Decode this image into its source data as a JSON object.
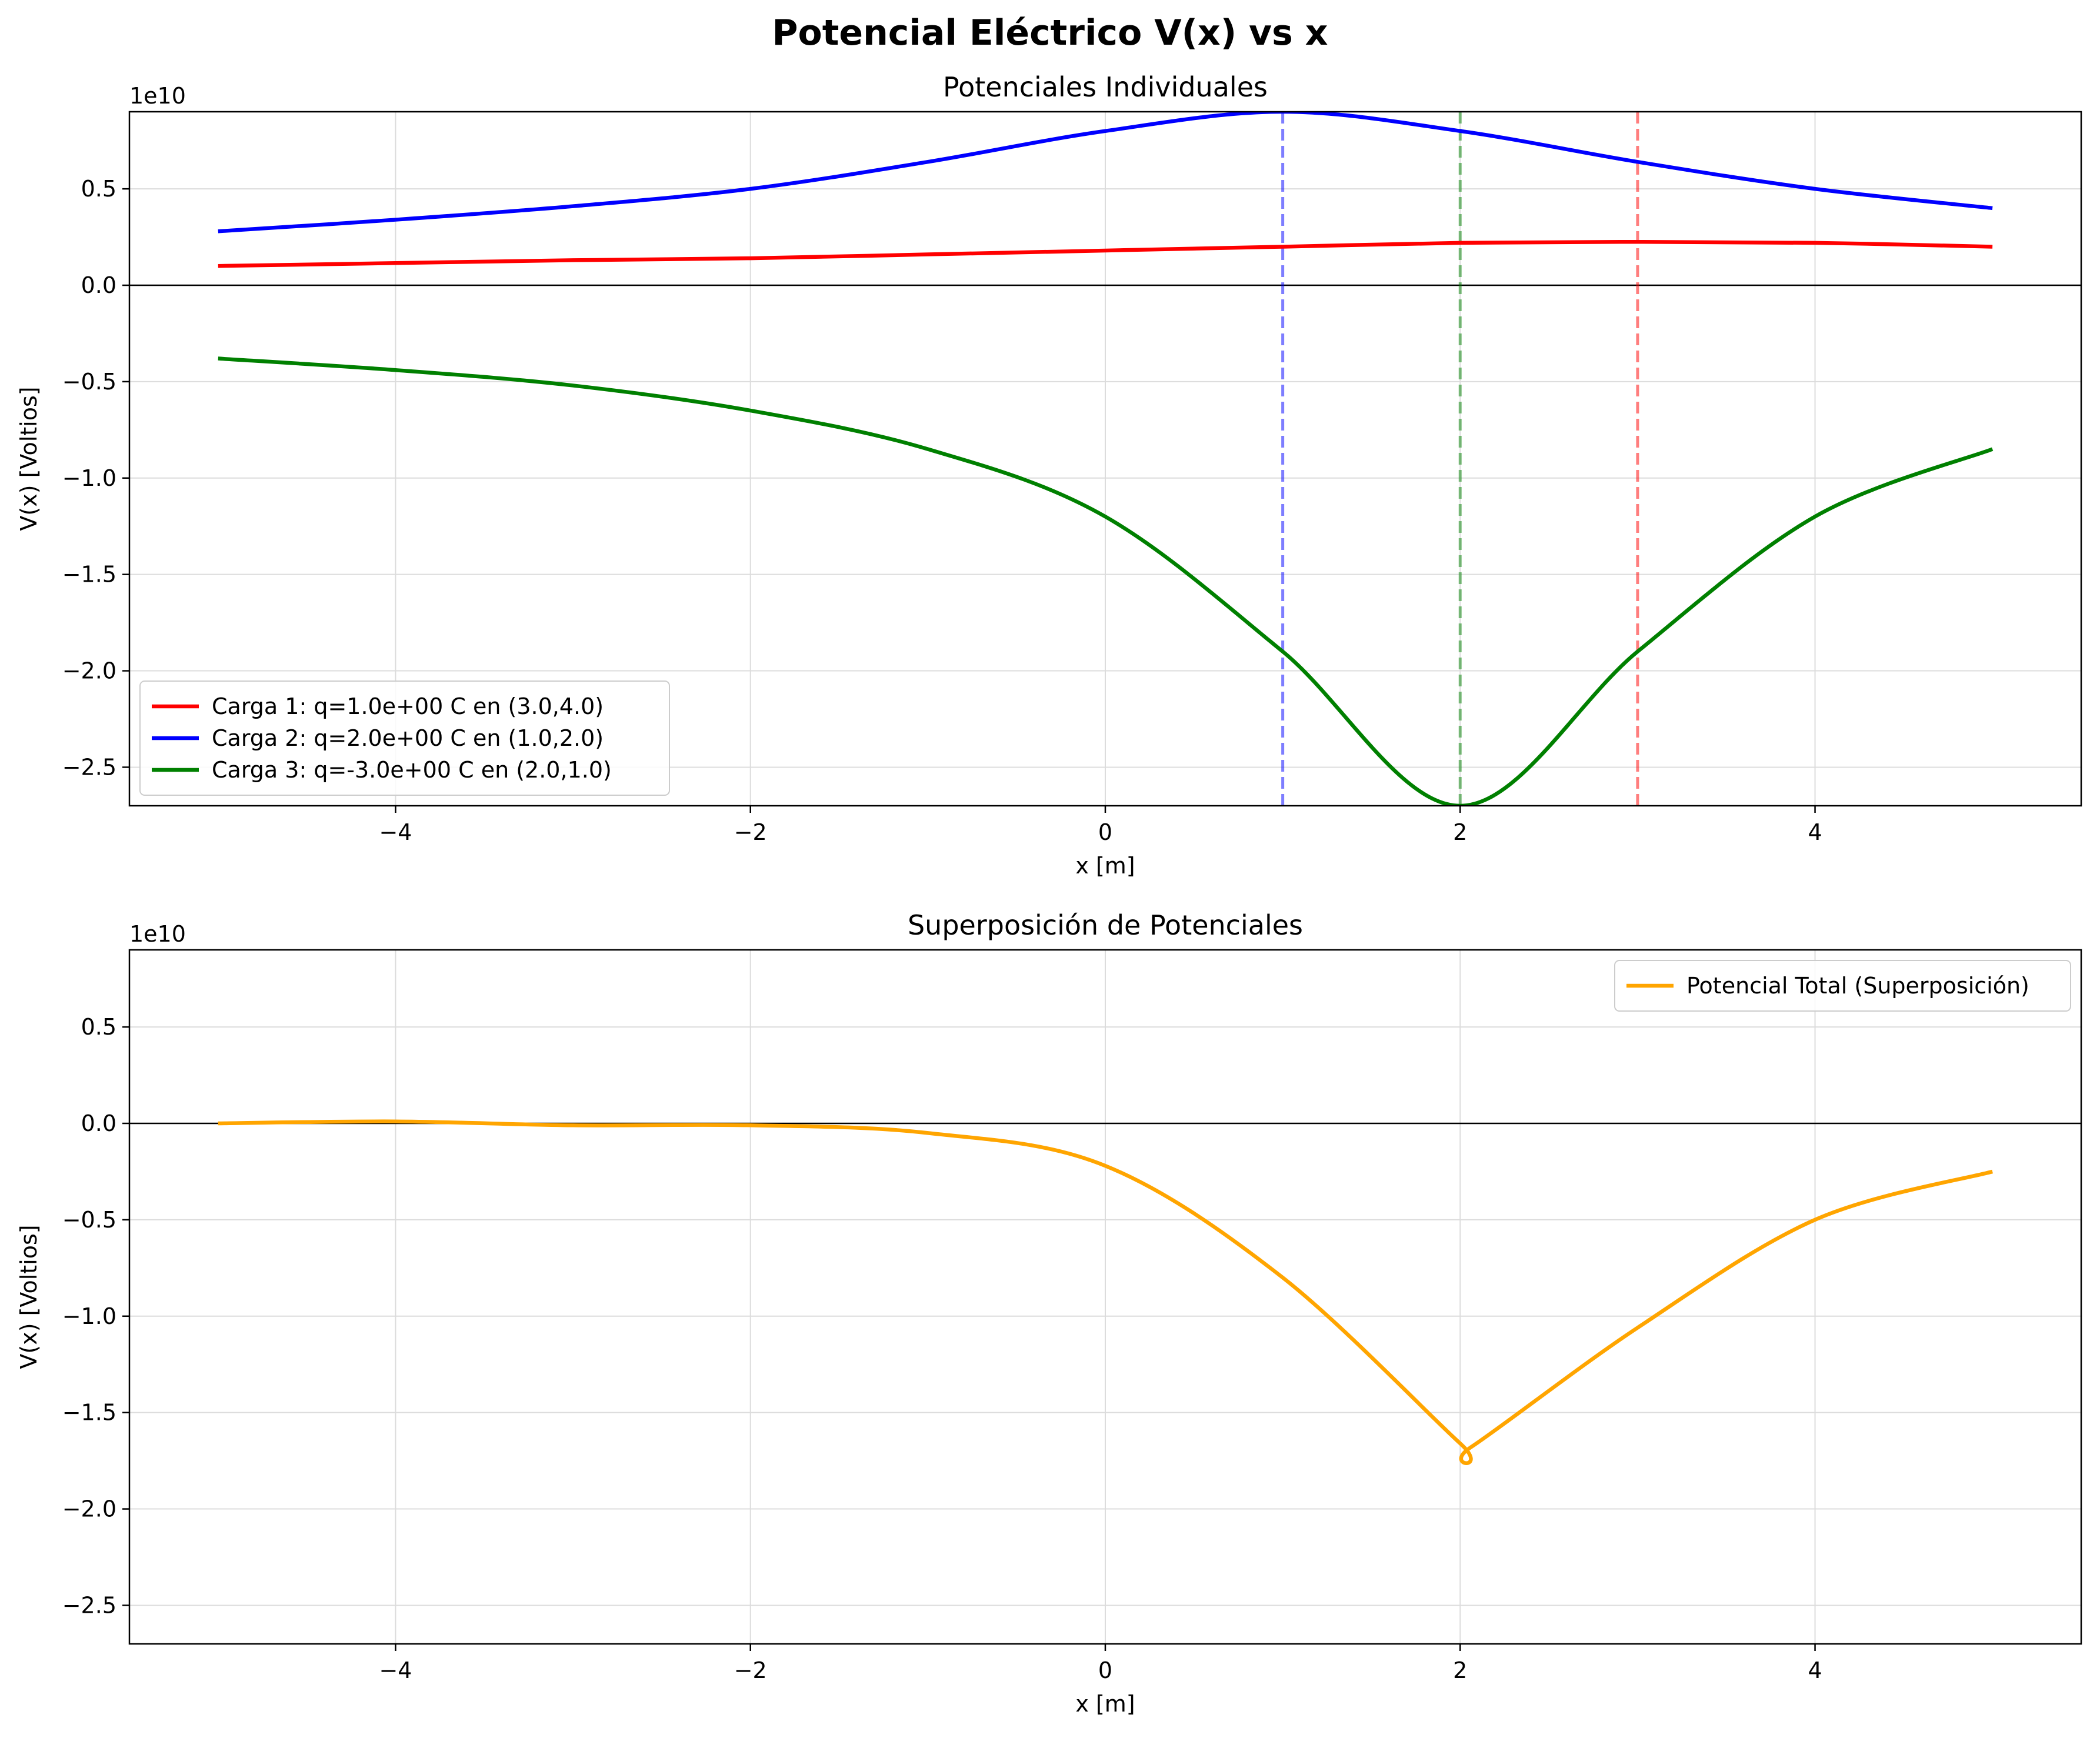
{
  "figure": {
    "suptitle": "Potencial Eléctrico V(x) vs x"
  },
  "chart_data": [
    {
      "type": "line",
      "title": "Potenciales Individuales",
      "xlabel": "x [m]",
      "ylabel": "V(x) [Voltios]",
      "y_offset_text": "1e10",
      "y_scale_factor": 10000000000,
      "xlim": [
        -5.5,
        5.5
      ],
      "ylim": [
        -2.7,
        0.9
      ],
      "xticks": [
        -4,
        -2,
        0,
        2,
        4
      ],
      "xtick_labels": [
        "−4",
        "−2",
        "0",
        "2",
        "4"
      ],
      "yticks": [
        0.5,
        0.0,
        -0.5,
        -1.0,
        -1.5,
        -2.0,
        -2.5
      ],
      "ytick_labels": [
        "0.5",
        "0.0",
        "−0.5",
        "−1.0",
        "−1.5",
        "−2.0",
        "−2.5"
      ],
      "grid": true,
      "zero_line": true,
      "legend_position": "lower-left",
      "vertical_lines": [
        {
          "x": 1.0,
          "color": "#0000ff"
        },
        {
          "x": 2.0,
          "color": "#008000"
        },
        {
          "x": 3.0,
          "color": "#ff0000"
        }
      ],
      "series": [
        {
          "name": "Carga 1: q=1.0e+00 C en (3.0,4.0)",
          "color": "#ff0000",
          "q": 1.0,
          "position": [
            3.0,
            4.0
          ],
          "x": [
            -5,
            -4,
            -3,
            -2,
            -1,
            0,
            1,
            2,
            3,
            4,
            5
          ],
          "y": [
            0.1,
            0.115,
            0.13,
            0.14,
            0.16,
            0.18,
            0.2,
            0.22,
            0.225,
            0.22,
            0.2
          ]
        },
        {
          "name": "Carga 2: q=2.0e+00 C en (1.0,2.0)",
          "color": "#0000ff",
          "q": 2.0,
          "position": [
            1.0,
            2.0
          ],
          "x": [
            -5,
            -4,
            -3,
            -2,
            -1,
            0,
            1,
            2,
            3,
            4,
            5
          ],
          "y": [
            0.28,
            0.34,
            0.41,
            0.5,
            0.64,
            0.8,
            0.9,
            0.8,
            0.64,
            0.5,
            0.4
          ]
        },
        {
          "name": "Carga 3: q=-3.0e+00 C en (2.0,1.0)",
          "color": "#008000",
          "q": -3.0,
          "position": [
            2.0,
            1.0
          ],
          "x": [
            -5,
            -4,
            -3,
            -2,
            -1,
            0,
            1,
            2,
            3,
            4,
            5
          ],
          "y": [
            -0.38,
            -0.44,
            -0.52,
            -0.65,
            -0.85,
            -1.2,
            -1.9,
            -2.7,
            -1.9,
            -1.2,
            -0.85
          ]
        }
      ]
    },
    {
      "type": "line",
      "title": "Superposición de Potenciales",
      "xlabel": "x [m]",
      "ylabel": "V(x) [Voltios]",
      "y_offset_text": "1e10",
      "y_scale_factor": 10000000000,
      "xlim": [
        -5.5,
        5.5
      ],
      "ylim": [
        -2.7,
        0.9
      ],
      "xticks": [
        -4,
        -2,
        0,
        2,
        4
      ],
      "xtick_labels": [
        "−4",
        "−2",
        "0",
        "2",
        "4"
      ],
      "yticks": [
        0.5,
        0.0,
        -0.5,
        -1.0,
        -1.5,
        -2.0,
        -2.5
      ],
      "ytick_labels": [
        "0.5",
        "0.0",
        "−0.5",
        "−1.0",
        "−1.5",
        "−2.0",
        "−2.5"
      ],
      "grid": true,
      "zero_line": true,
      "legend_position": "top-right",
      "series": [
        {
          "name": "Potencial Total (Superposición)",
          "color": "#ffa500",
          "x": [
            -5,
            -4,
            -3,
            -2,
            -1,
            0,
            1,
            2,
            2.06,
            3,
            4,
            5
          ],
          "y": [
            0.0,
            0.01,
            -0.01,
            -0.01,
            -0.05,
            -0.22,
            -0.8,
            -1.66,
            -1.68,
            -1.06,
            -0.5,
            -0.25
          ]
        }
      ]
    }
  ]
}
